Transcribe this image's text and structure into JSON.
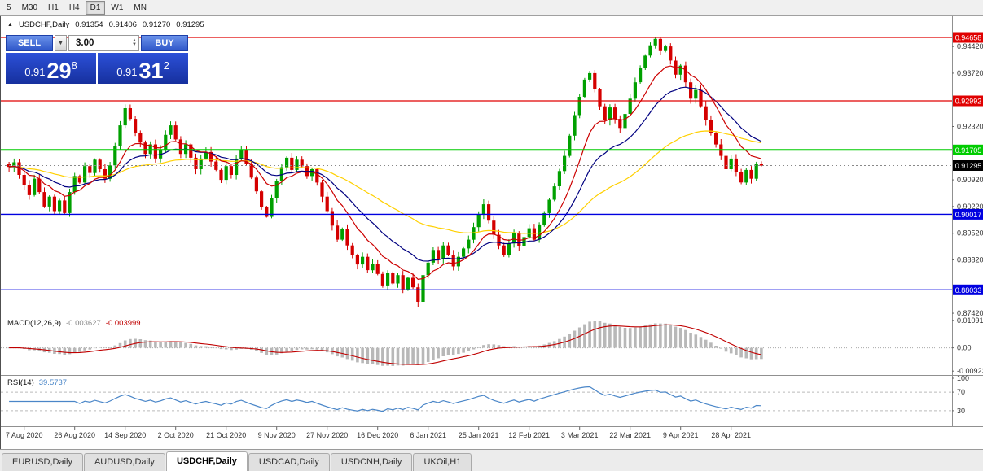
{
  "toolbar": {
    "timeframes": [
      {
        "label": "5",
        "active": false
      },
      {
        "label": "M30",
        "active": false
      },
      {
        "label": "H1",
        "active": false
      },
      {
        "label": "H4",
        "active": false
      },
      {
        "label": "D1",
        "active": true
      },
      {
        "label": "W1",
        "active": false
      },
      {
        "label": "MN",
        "active": false
      }
    ]
  },
  "icons": {
    "collapse": "▲",
    "dropdown": "▼",
    "spin_up": "▲",
    "spin_down": "▼"
  },
  "chart": {
    "symbol_label": "USDCHF,Daily",
    "ohlc": {
      "open": "0.91354",
      "high": "0.91406",
      "low": "0.91270",
      "close": "0.91295"
    }
  },
  "trade_panel": {
    "sell_label": "SELL",
    "buy_label": "BUY",
    "volume": "3.00",
    "sell_price": {
      "prefix": "0.91",
      "big": "29",
      "sup": "8"
    },
    "buy_price": {
      "prefix": "0.91",
      "big": "31",
      "sup": "2"
    }
  },
  "indicators": {
    "macd": {
      "title": "MACD(12,26,9)",
      "value_main": "-0.003627",
      "value_signal": "-0.003999",
      "fast": 12,
      "slow": 26,
      "signal": 9,
      "range": {
        "max": 0.0118,
        "min": -0.0098
      },
      "axis_labels": [
        {
          "label": "0.010913",
          "value": 0.010913
        },
        {
          "label": "0.00",
          "value": 0
        },
        {
          "label": "-0.00922",
          "value": -0.00922
        }
      ],
      "hist_color": "#b8b8b8",
      "signal_color": "#c00000"
    },
    "rsi": {
      "title": "RSI(14)",
      "value": "39.5737",
      "period": 14,
      "line_color": "#4a86c8",
      "levels": [
        {
          "label": "100",
          "value": 100,
          "dashed": false
        },
        {
          "label": "70",
          "value": 70,
          "dashed": true
        },
        {
          "label": "30",
          "value": 30,
          "dashed": true
        }
      ]
    }
  },
  "chart_data": {
    "type": "candlestick",
    "symbol": "USDCHF",
    "timeframe": "Daily",
    "ohlc_current": {
      "open": 0.91354,
      "high": 0.91406,
      "low": 0.9127,
      "close": 0.91295
    },
    "color_up": "#00a000",
    "color_down": "#d40000",
    "price_axis": {
      "top": 0.9517,
      "bottom": 0.874
    },
    "y_ticks": [
      "0.94420",
      "0.93720",
      "0.93020",
      "0.92320",
      "0.91620",
      "0.90920",
      "0.90220",
      "0.89520",
      "0.88820",
      "0.88120",
      "0.87420"
    ],
    "x_labels": [
      "7 Aug 2020",
      "26 Aug 2020",
      "14 Sep 2020",
      "2 Oct 2020",
      "21 Oct 2020",
      "9 Nov 2020",
      "27 Nov 2020",
      "16 Dec 2020",
      "6 Jan 2021",
      "25 Jan 2021",
      "12 Feb 2021",
      "3 Mar 2021",
      "22 Mar 2021",
      "9 Apr 2021",
      "28 Apr 2021"
    ],
    "label_offset": 3,
    "label_every": 10,
    "hlines": [
      {
        "value": 0.94658,
        "label": "0.94658",
        "color": "#e00000",
        "width": 1.2
      },
      {
        "value": 0.92992,
        "label": "0.92992",
        "color": "#e00000",
        "width": 1.2
      },
      {
        "value": 0.91705,
        "label": "0.91705",
        "color": "#00cc00",
        "width": 2
      },
      {
        "value": 0.90017,
        "label": "0.90017",
        "color": "#0000e0",
        "width": 1.4
      },
      {
        "value": 0.88033,
        "label": "0.88033",
        "color": "#0000e0",
        "width": 1.4
      }
    ],
    "current_price": {
      "value": 0.91295,
      "label": "0.91295"
    },
    "moving_averages": [
      {
        "name": "ma-slow-yellow",
        "period": 50,
        "color": "#ffd000"
      },
      {
        "name": "ma-mid-navy",
        "period": 20,
        "color": "#000080"
      },
      {
        "name": "ma-fast-red",
        "period": 10,
        "color": "#cc0000"
      }
    ],
    "wick_overrides": {
      "23": {
        "high": 0.929
      },
      "51": {
        "low": 0.8993
      },
      "81": {
        "low": 0.8757
      },
      "115": {
        "high": 0.9378
      },
      "128": {
        "high": 0.94665
      },
      "149": {
        "high": 0.91406,
        "low": 0.9127
      }
    },
    "closes": [
      0.9126,
      0.9138,
      0.9105,
      0.9078,
      0.9052,
      0.9095,
      0.906,
      0.9022,
      0.9048,
      0.901,
      0.9038,
      0.9005,
      0.906,
      0.9102,
      0.9085,
      0.9128,
      0.911,
      0.9145,
      0.912,
      0.9095,
      0.913,
      0.918,
      0.9235,
      0.928,
      0.9252,
      0.9215,
      0.919,
      0.916,
      0.9185,
      0.9148,
      0.9172,
      0.921,
      0.9235,
      0.9198,
      0.916,
      0.9185,
      0.915,
      0.912,
      0.9148,
      0.9165,
      0.914,
      0.9118,
      0.9092,
      0.9128,
      0.9105,
      0.9148,
      0.917,
      0.9135,
      0.9098,
      0.9062,
      0.902,
      0.8995,
      0.9045,
      0.9088,
      0.9125,
      0.915,
      0.9118,
      0.9145,
      0.9128,
      0.9102,
      0.912,
      0.9085,
      0.9048,
      0.901,
      0.8972,
      0.8935,
      0.8962,
      0.892,
      0.8895,
      0.887,
      0.889,
      0.8855,
      0.8872,
      0.8845,
      0.8815,
      0.8848,
      0.882,
      0.8842,
      0.8805,
      0.8835,
      0.881,
      0.8772,
      0.8842,
      0.8875,
      0.8908,
      0.8885,
      0.892,
      0.8895,
      0.8865,
      0.889,
      0.8912,
      0.8935,
      0.8968,
      0.9002,
      0.9028,
      0.8985,
      0.8948,
      0.892,
      0.8895,
      0.8925,
      0.8952,
      0.8918,
      0.8942,
      0.8965,
      0.8935,
      0.8975,
      0.9005,
      0.904,
      0.9075,
      0.9115,
      0.9155,
      0.9208,
      0.9262,
      0.931,
      0.9355,
      0.9372,
      0.933,
      0.9285,
      0.9248,
      0.9282,
      0.9252,
      0.9228,
      0.9265,
      0.9305,
      0.9348,
      0.9385,
      0.9418,
      0.9445,
      0.9462,
      0.943,
      0.9442,
      0.9405,
      0.9368,
      0.9392,
      0.9348,
      0.9305,
      0.9328,
      0.9285,
      0.9248,
      0.9215,
      0.9185,
      0.9155,
      0.912,
      0.9148,
      0.9112,
      0.9085,
      0.9118,
      0.9095,
      0.9135,
      0.91295
    ]
  },
  "tabs": [
    {
      "label": "EURUSD,Daily",
      "active": false
    },
    {
      "label": "AUDUSD,Daily",
      "active": false
    },
    {
      "label": "USDCHF,Daily",
      "active": true
    },
    {
      "label": "USDCAD,Daily",
      "active": false
    },
    {
      "label": "USDCNH,Daily",
      "active": false
    },
    {
      "label": "UKOil,H1",
      "active": false
    }
  ]
}
